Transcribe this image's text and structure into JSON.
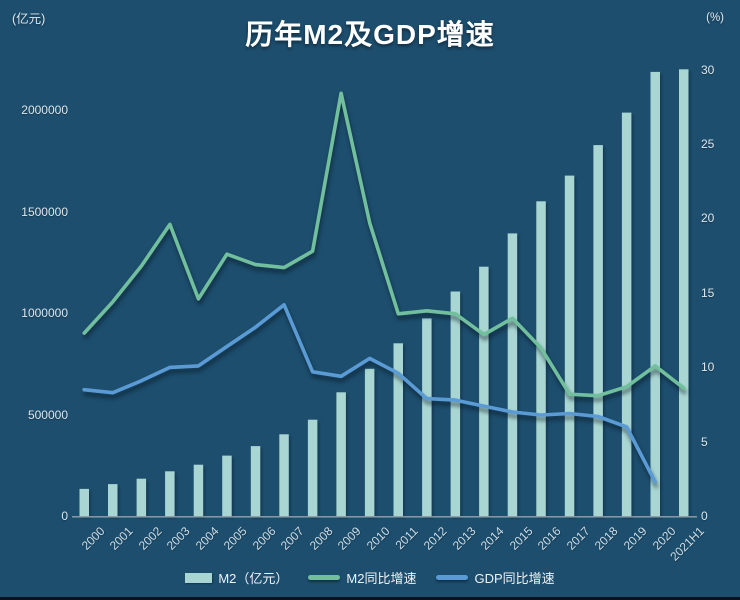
{
  "window": {
    "background": "#1d4e6e"
  },
  "chart_data": {
    "type": "combo",
    "title": "历年M2及GDP增速",
    "categories": [
      "2000",
      "2001",
      "2002",
      "2003",
      "2004",
      "2005",
      "2006",
      "2007",
      "2008",
      "2009",
      "2010",
      "2011",
      "2012",
      "2013",
      "2014",
      "2015",
      "2016",
      "2017",
      "2018",
      "2019",
      "2020",
      "2021H1"
    ],
    "series": [
      {
        "name": "M2（亿元）",
        "type": "bar",
        "axis": "left",
        "color": "#a9d6d3",
        "values": [
          134610,
          158302,
          185007,
          221223,
          254107,
          298756,
          345604,
          403442,
          475167,
          610225,
          725852,
          851591,
          974149,
          1106525,
          1228375,
          1392278,
          1550067,
          1676768,
          1826744,
          1986489,
          2186795,
          2200000
        ]
      },
      {
        "name": "M2同比增速",
        "type": "line",
        "axis": "right",
        "color": "#72bf9d",
        "values": [
          12.3,
          14.4,
          16.8,
          19.6,
          14.6,
          17.6,
          16.9,
          16.7,
          17.8,
          28.4,
          19.7,
          13.6,
          13.8,
          13.6,
          12.2,
          13.3,
          11.3,
          8.2,
          8.1,
          8.7,
          10.1,
          8.6
        ]
      },
      {
        "name": "GDP同比增速",
        "type": "line",
        "axis": "right",
        "color": "#5b9bd5",
        "values": [
          8.5,
          8.3,
          9.1,
          10.0,
          10.1,
          11.4,
          12.7,
          14.2,
          9.7,
          9.4,
          10.6,
          9.6,
          7.9,
          7.8,
          7.4,
          7.0,
          6.8,
          6.9,
          6.7,
          6.0,
          2.3,
          null
        ]
      }
    ],
    "left_axis": {
      "unit_label": "(亿元)",
      "min": 0,
      "max": 2200000,
      "tick_interval": 500000,
      "ticks": [
        0,
        500000,
        1000000,
        1500000,
        2000000
      ]
    },
    "right_axis": {
      "unit_label": "(%)",
      "min": 0,
      "max": 30,
      "tick_interval": 5,
      "ticks": [
        0,
        5,
        10,
        15,
        20,
        25,
        30
      ]
    },
    "legend_position": "bottom",
    "grid": false
  }
}
